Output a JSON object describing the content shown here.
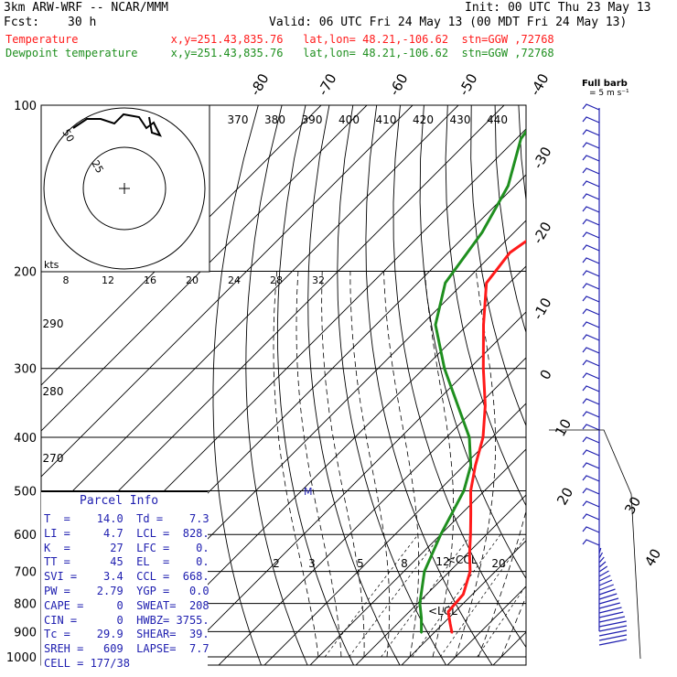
{
  "header": {
    "model": "3km ARW-WRF -- NCAR/MMM",
    "init": "Init: 00 UTC Thu 23 May 13",
    "fcst_label": "Fcst:",
    "fcst_value": "30 h",
    "valid": "Valid: 06 UTC Fri 24 May 13 (00 MDT Fri 24 May 13)",
    "line_temp": "Temperature              x,y=251.43,835.76   lat,lon= 48.21,-106.62  stn=GGW ,72768",
    "line_dewp": "Dewpoint temperature     x,y=251.43,835.76   lat,lon= 48.21,-106.62  stn=GGW ,72768"
  },
  "barb_title_1": "Full barb",
  "barb_title_2": "= 5 m s⁻¹",
  "hodograph": {
    "kts_label": "kts",
    "ring_labels": [
      "25",
      "50"
    ],
    "axis_labels": [
      "8",
      "12",
      "16",
      "20",
      "24",
      "28",
      "32"
    ]
  },
  "theta_labels": [
    "370",
    "380",
    "390",
    "400",
    "410",
    "420",
    "430",
    "440"
  ],
  "theta_left_labels": [
    "290",
    "280",
    "270"
  ],
  "mixing_labels": [
    "2",
    "3",
    "5",
    "8",
    "12",
    "20"
  ],
  "skew_temp_labels": [
    "-80",
    "-70",
    "-60",
    "-50",
    "-40",
    "-30",
    "-20",
    "-10",
    "0",
    "10",
    "20",
    "30",
    "40"
  ],
  "lcl_label": "LCL",
  "ccl_label": "CCL",
  "parcel_info": {
    "title": "Parcel Info",
    "rows": [
      "T  =    14.0  Td =    7.3",
      "LI =     4.7  LCL =  828.",
      "K  =      27  LFC =    0.",
      "TT =      45  EL  =    0.",
      "SVI =    3.4  CCL =  668.",
      "PW =    2.79  YGP =   0.0",
      "CAPE =     0  SWEAT=  208",
      "CIN =      0  HWBZ= 3755.",
      "Tc =    29.9  SHEAR=  39.",
      "SREH =   609  LAPSE=  7.7",
      "CELL = 177/38"
    ]
  },
  "chart_data": {
    "type": "line",
    "title": "",
    "xlabel": "",
    "ylabel": "",
    "y_log_scale": true,
    "ylim": [
      1000,
      100
    ],
    "pressure_levels": [
      "100",
      "200",
      "300",
      "400",
      "500",
      "600",
      "700",
      "800",
      "900",
      "1000"
    ],
    "series": [
      {
        "name": "Temperature",
        "color": "#ff1a1a",
        "points": [
          {
            "p": 905,
            "t": 14.0
          },
          {
            "p": 870,
            "t": 11.5
          },
          {
            "p": 828,
            "t": 8.5
          },
          {
            "p": 770,
            "t": 8.0
          },
          {
            "p": 700,
            "t": 4.5
          },
          {
            "p": 650,
            "t": 0.5
          },
          {
            "p": 600,
            "t": -3.5
          },
          {
            "p": 550,
            "t": -8.0
          },
          {
            "p": 500,
            "t": -13.0
          },
          {
            "p": 450,
            "t": -17.5
          },
          {
            "p": 400,
            "t": -22.0
          },
          {
            "p": 350,
            "t": -28.5
          },
          {
            "p": 300,
            "t": -37.0
          },
          {
            "p": 250,
            "t": -46.5
          },
          {
            "p": 210,
            "t": -55.0
          },
          {
            "p": 185,
            "t": -56.5
          },
          {
            "p": 165,
            "t": -54.0
          },
          {
            "p": 145,
            "t": -55.5
          },
          {
            "p": 125,
            "t": -53.0
          },
          {
            "p": 100,
            "t": -57.5
          }
        ]
      },
      {
        "name": "Dewpoint temperature",
        "color": "#1f8f1f",
        "points": [
          {
            "p": 905,
            "t": 7.3
          },
          {
            "p": 850,
            "t": 4.0
          },
          {
            "p": 800,
            "t": 0.5
          },
          {
            "p": 700,
            "t": -5.5
          },
          {
            "p": 600,
            "t": -10.0
          },
          {
            "p": 500,
            "t": -14.5
          },
          {
            "p": 450,
            "t": -18.5
          },
          {
            "p": 400,
            "t": -25.0
          },
          {
            "p": 350,
            "t": -34.5
          },
          {
            "p": 300,
            "t": -45.5
          },
          {
            "p": 250,
            "t": -57.0
          },
          {
            "p": 210,
            "t": -64.0
          },
          {
            "p": 170,
            "t": -67.0
          },
          {
            "p": 140,
            "t": -71.5
          },
          {
            "p": 115,
            "t": -79.0
          },
          {
            "p": 100,
            "t": -81.0
          }
        ]
      }
    ]
  },
  "colors": {
    "isobar": "#000000",
    "isotherm": "#000000",
    "adiabat": "#000000",
    "wind_barb": "#2020b0"
  }
}
